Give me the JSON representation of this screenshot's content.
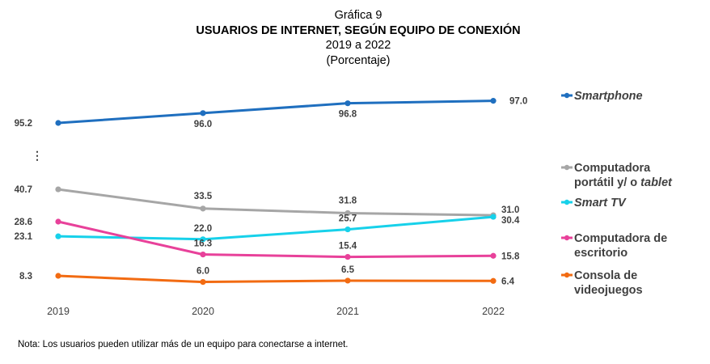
{
  "figure": {
    "label": "Gráfica 9",
    "title": "USUARIOS DE INTERNET, SEGÚN EQUIPO DE CONEXIÓN",
    "period": "2019 a 2022",
    "unit": "(Porcentaje)",
    "note": "Nota: Los usuarios pueden utilizar más de un equipo para conectarse a internet.",
    "axis_break": "⋮"
  },
  "chart_data": {
    "type": "line",
    "x": [
      "2019",
      "2020",
      "2021",
      "2022"
    ],
    "axis_break": true,
    "grid": false,
    "legend_position": "right",
    "series": [
      {
        "name": "Smartphone",
        "legend_lines": [
          "Smartphone"
        ],
        "italic": true,
        "color": "#1f6fbf",
        "values": [
          95.2,
          96.0,
          96.8,
          97.0
        ],
        "labels": [
          "95.2",
          "96.0",
          "96.8",
          "97.0"
        ]
      },
      {
        "name": "Computadora portátil y/ o tablet",
        "legend_lines": [
          "Computadora",
          "portátil y/ o tablet"
        ],
        "italic": false,
        "color": "#a6a6a6",
        "values": [
          40.7,
          33.5,
          31.8,
          31.0
        ],
        "labels": [
          "40.7",
          "33.5",
          "31.8",
          "31.0"
        ]
      },
      {
        "name": "Smart TV",
        "legend_lines": [
          "Smart TV"
        ],
        "italic": true,
        "color": "#17d1ea",
        "values": [
          23.1,
          22.0,
          25.7,
          30.4
        ],
        "labels": [
          "23.1",
          "22.0",
          "25.7",
          "30.4"
        ]
      },
      {
        "name": "Computadora de escritorio",
        "legend_lines": [
          "Computadora de",
          "escritorio"
        ],
        "italic": false,
        "color": "#e8419a",
        "values": [
          28.6,
          16.3,
          15.4,
          15.8
        ],
        "labels": [
          "28.6",
          "16.3",
          "15.4",
          "15.8"
        ]
      },
      {
        "name": "Consola de videojuegos",
        "legend_lines": [
          "Consola de",
          "videojuegos"
        ],
        "italic": false,
        "color": "#f26b12",
        "values": [
          8.3,
          6.0,
          6.5,
          6.4
        ],
        "labels": [
          "8.3",
          "6.0",
          "6.5",
          "6.4"
        ]
      }
    ]
  }
}
